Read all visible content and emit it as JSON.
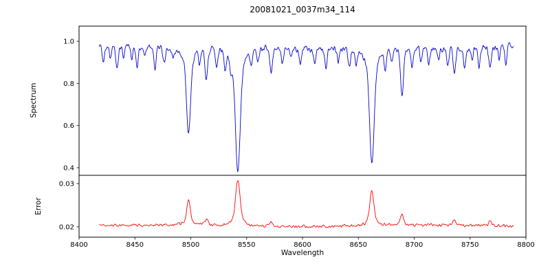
{
  "figure": {
    "title": "20081021_0037m34_114",
    "xlabel": "Wavelength",
    "background": "#ffffff"
  },
  "chart_data": [
    {
      "type": "line",
      "name": "spectrum",
      "ylabel": "Spectrum",
      "color": "#0000cc",
      "xlim": [
        8400,
        8800
      ],
      "ylim": [
        0.364,
        1.072
      ],
      "xticks": [
        8400,
        8450,
        8500,
        8550,
        8600,
        8650,
        8700,
        8750,
        8800
      ],
      "xtick_labels": [
        "8400",
        "8450",
        "8500",
        "8550",
        "8600",
        "8650",
        "8700",
        "8750",
        "8800"
      ],
      "yticks": [
        0.4,
        0.6,
        0.8,
        1.0
      ],
      "ytick_labels": [
        "0.4",
        "0.6",
        "0.8",
        "1.0"
      ],
      "x_start": 8418,
      "x_end": 8789,
      "x_step": 0.5,
      "continuum": 0.972,
      "noise_amplitude": 0.022,
      "strong_lines": [
        {
          "center": 8498.0,
          "depth": 0.415,
          "sigma": 1.7,
          "wing": 0.3
        },
        {
          "center": 8542.1,
          "depth": 0.595,
          "sigma": 2.0,
          "wing": 0.3
        },
        {
          "center": 8662.1,
          "depth": 0.55,
          "sigma": 1.9,
          "wing": 0.3
        }
      ],
      "weak_lines": [
        [
          8422,
          0.07,
          1.0
        ],
        [
          8428,
          0.05,
          0.9
        ],
        [
          8434,
          0.11,
          1.1
        ],
        [
          8440,
          0.06,
          0.9
        ],
        [
          8447,
          0.05,
          0.9
        ],
        [
          8452,
          0.09,
          1.0
        ],
        [
          8459,
          0.05,
          0.9
        ],
        [
          8468,
          0.1,
          1.1
        ],
        [
          8476,
          0.07,
          1.0
        ],
        [
          8484,
          0.05,
          0.9
        ],
        [
          8508,
          0.07,
          1.0
        ],
        [
          8514,
          0.15,
          1.2
        ],
        [
          8523,
          0.08,
          1.0
        ],
        [
          8531,
          0.09,
          1.0
        ],
        [
          8536,
          0.07,
          0.9
        ],
        [
          8554,
          0.07,
          1.0
        ],
        [
          8560,
          0.06,
          0.9
        ],
        [
          8572,
          0.12,
          1.2
        ],
        [
          8582,
          0.07,
          1.0
        ],
        [
          8590,
          0.05,
          0.9
        ],
        [
          8598,
          0.08,
          1.0
        ],
        [
          8611,
          0.06,
          1.0
        ],
        [
          8621,
          0.09,
          1.1
        ],
        [
          8632,
          0.05,
          0.9
        ],
        [
          8642,
          0.07,
          1.0
        ],
        [
          8648,
          0.06,
          0.9
        ],
        [
          8674,
          0.08,
          1.0
        ],
        [
          8680,
          0.06,
          0.9
        ],
        [
          8689,
          0.23,
          1.3
        ],
        [
          8698,
          0.09,
          1.0
        ],
        [
          8706,
          0.06,
          0.9
        ],
        [
          8713,
          0.08,
          1.0
        ],
        [
          8722,
          0.06,
          0.9
        ],
        [
          8730,
          0.07,
          1.0
        ],
        [
          8736,
          0.13,
          1.1
        ],
        [
          8745,
          0.08,
          1.0
        ],
        [
          8752,
          0.06,
          0.9
        ],
        [
          8758,
          0.09,
          1.0
        ],
        [
          8768,
          0.1,
          1.1
        ],
        [
          8776,
          0.06,
          0.9
        ],
        [
          8782,
          0.08,
          1.0
        ]
      ]
    },
    {
      "type": "line",
      "name": "error",
      "ylabel": "Error",
      "color": "#ff0000",
      "xlim": [
        8400,
        8800
      ],
      "ylim": [
        0.0176,
        0.0319
      ],
      "yticks": [
        0.02,
        0.03
      ],
      "ytick_labels": [
        "0.02",
        "0.03"
      ],
      "baseline": 0.0202,
      "noise_amplitude": 0.00045,
      "peaks": [
        [
          8498.0,
          0.006,
          1.5
        ],
        [
          8542.1,
          0.0105,
          1.9
        ],
        [
          8662.1,
          0.008,
          1.7
        ],
        [
          8514.0,
          0.0013,
          1.2
        ],
        [
          8572.0,
          0.001,
          1.2
        ],
        [
          8689.0,
          0.0024,
          1.3
        ],
        [
          8736.0,
          0.0012,
          1.1
        ],
        [
          8768.0,
          0.001,
          1.1
        ]
      ]
    }
  ]
}
